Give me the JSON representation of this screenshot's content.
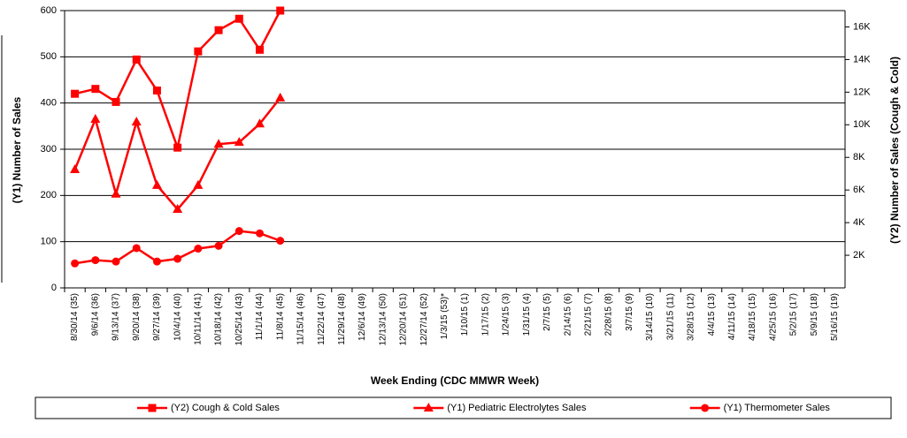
{
  "chart_data": {
    "type": "line",
    "x_label": "Week Ending (CDC MMWR Week)",
    "y_label": "(Y1) Number of Sales",
    "y2_label": "(Y2) Number of Sales (Cough & Cold)",
    "categories": [
      "8/30/14 (35)",
      "9/6/14 (36)",
      "9/13/14 (37)",
      "9/20/14 (38)",
      "9/27/14 (39)",
      "10/4/14 (40)",
      "10/11/14 (41)",
      "10/18/14 (42)",
      "10/25/14 (43)",
      "11/1/14 (44)",
      "11/8/14 (45)",
      "11/15/14 (46)",
      "11/22/14 (47)",
      "11/29/14 (48)",
      "12/6/14 (49)",
      "12/13/14 (50)",
      "12/20/14 (51)",
      "12/27/14 (52)",
      "1/3/15 (53)*",
      "1/10/15 (1)",
      "1/17/15 (2)",
      "1/24/15 (3)",
      "1/31/15 (4)",
      "2/7/15 (5)",
      "2/14/15 (6)",
      "2/21/15 (7)",
      "2/28/15 (8)",
      "3/7/15 (9)",
      "3/14/15 (10)",
      "3/21/15 (11)",
      "3/28/15 (12)",
      "4/4/15 (13)",
      "4/11/15 (14)",
      "4/18/15 (15)",
      "4/25/15 (16)",
      "5/2/15 (17)",
      "5/9/15 (18)",
      "5/16/15 (19)"
    ],
    "series": [
      {
        "name": "(Y2) Cough & Cold Sales",
        "color": "#ff0000",
        "marker": "square",
        "axis": "y2",
        "values": [
          11900,
          12200,
          11400,
          14000,
          12100,
          8600,
          14500,
          15800,
          16500,
          14600,
          17000,
          null,
          null,
          null,
          null,
          null,
          null,
          null,
          null,
          null,
          null,
          null,
          null,
          null,
          null,
          null,
          null,
          null,
          null,
          null,
          null,
          null,
          null,
          null,
          null,
          null,
          null,
          null
        ]
      },
      {
        "name": "(Y1) Pediatric Electrolytes Sales",
        "color": "#ff0000",
        "marker": "triangle",
        "values": [
          256,
          365,
          203,
          359,
          222,
          170,
          222,
          311,
          315,
          355,
          411,
          null,
          null,
          null,
          null,
          null,
          null,
          null,
          null,
          null,
          null,
          null,
          null,
          null,
          null,
          null,
          null,
          null,
          null,
          null,
          null,
          null,
          null,
          null,
          null,
          null,
          null,
          null
        ]
      },
      {
        "name": "(Y1) Thermometer Sales",
        "color": "#ff0000",
        "marker": "circle",
        "values": [
          53,
          60,
          57,
          86,
          57,
          63,
          85,
          91,
          123,
          118,
          102,
          null,
          null,
          null,
          null,
          null,
          null,
          null,
          null,
          null,
          null,
          null,
          null,
          null,
          null,
          null,
          null,
          null,
          null,
          null,
          null,
          null,
          null,
          null,
          null,
          null,
          null,
          null
        ]
      }
    ],
    "ylim": [
      0,
      600
    ],
    "yticks": [
      0,
      100,
      200,
      300,
      400,
      500,
      600
    ],
    "y2lim": [
      0,
      17000
    ],
    "y2ticks": [
      {
        "value": 2000,
        "label": "2K"
      },
      {
        "value": 4000,
        "label": "4K"
      },
      {
        "value": 6000,
        "label": "6K"
      },
      {
        "value": 8000,
        "label": "8K"
      },
      {
        "value": 10000,
        "label": "10K"
      },
      {
        "value": 12000,
        "label": "12K"
      },
      {
        "value": 14000,
        "label": "14K"
      },
      {
        "value": 16000,
        "label": "16K"
      }
    ],
    "grid": true,
    "legend": "bottom"
  }
}
